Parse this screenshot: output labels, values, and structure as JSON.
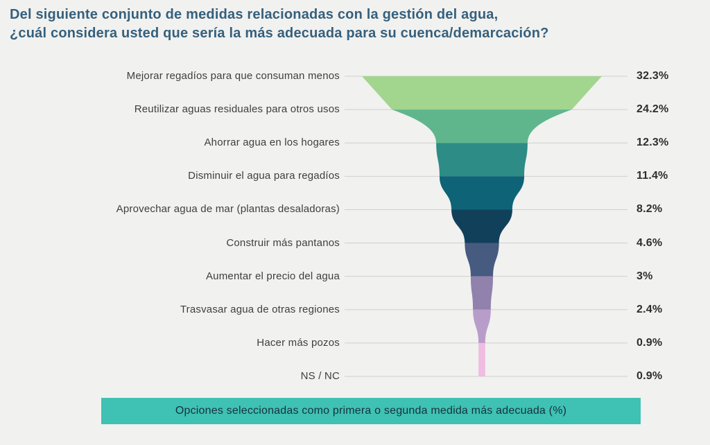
{
  "title": {
    "line1": "Del siguiente conjunto de medidas relacionadas con la gestión del agua,",
    "line2": "¿cuál considera usted que sería la más adecuada para su cuenca/demarcación?",
    "color": "#35607d"
  },
  "chart_data": {
    "type": "funnel",
    "title": "Del siguiente conjunto de medidas relacionadas con la gestión del agua, ¿cuál considera usted que sería la más adecuada para su cuenca/demarcación?",
    "categories": [
      "Mejorar regadíos para que consuman menos",
      "Reutilizar aguas residuales para otros usos",
      "Ahorrar agua en los hogares",
      "Disminuir el agua para regadíos",
      "Aprovechar agua de mar (plantas desaladoras)",
      "Construir más pantanos",
      "Aumentar el precio del agua",
      "Trasvasar agua de otras regiones",
      "Hacer más pozos",
      "NS / NC"
    ],
    "values": [
      32.3,
      24.2,
      12.3,
      11.4,
      8.2,
      4.6,
      3,
      2.4,
      0.9,
      0.9
    ],
    "value_labels": [
      "32.3%",
      "24.2%",
      "12.3%",
      "11.4%",
      "8.2%",
      "4.6%",
      "3%",
      "2.4%",
      "0.9%",
      "0.9%"
    ],
    "slice_colors": [
      "#a2d58e",
      "#5fb68c",
      "#2d8c85",
      "#0e6377",
      "#11405b",
      "#475a80",
      "#9081ad",
      "#b89dca",
      "#f0bce2"
    ],
    "gridline_color": "#cfcfcf",
    "label_color": "#3e3e3e",
    "value_color": "#2e2e2e",
    "grid": true,
    "legend": "none",
    "caption": "Opciones seleccionadas como primera o segunda medida más adecuada (%)",
    "caption_bg": "#3fc1b3",
    "caption_color": "#16323c"
  }
}
